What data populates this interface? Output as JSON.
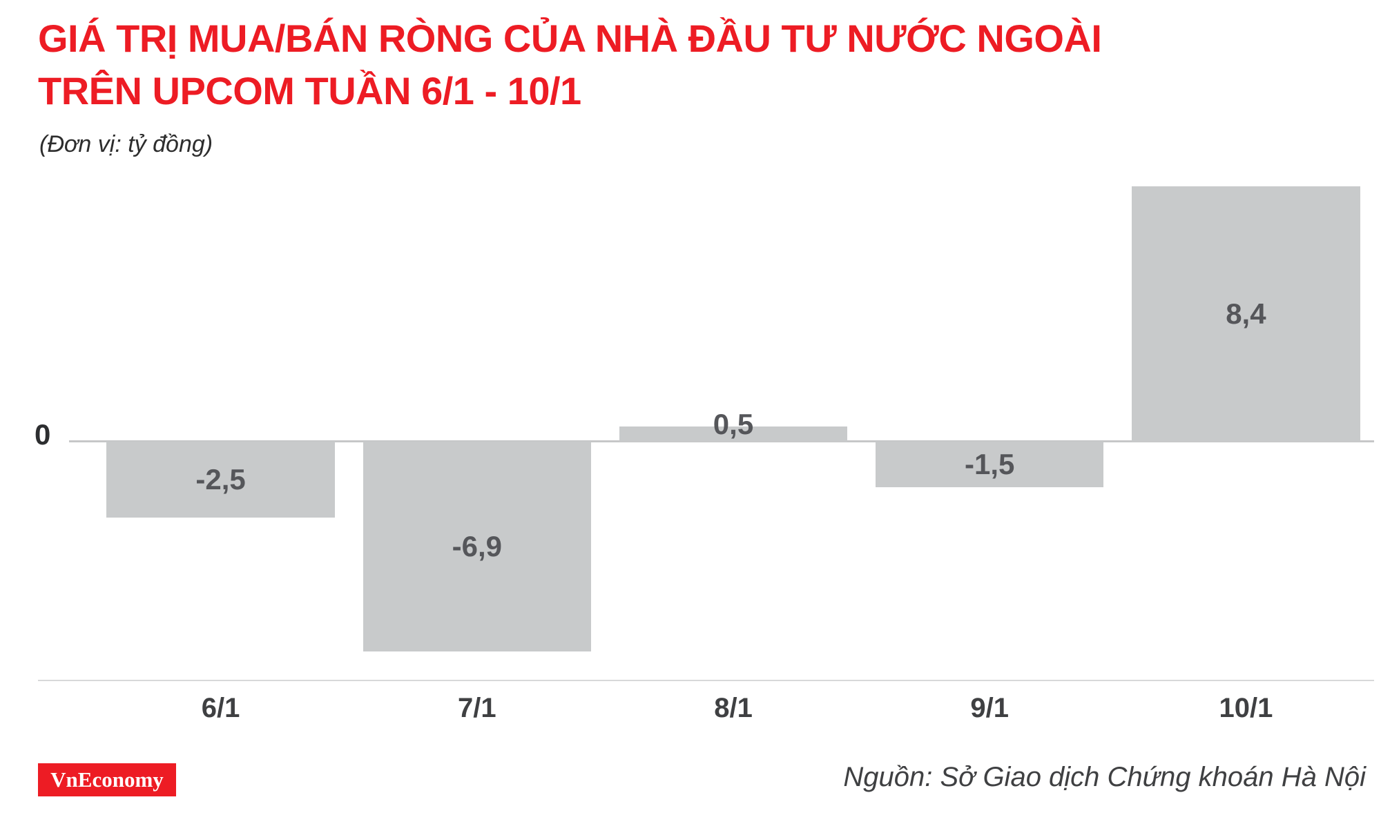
{
  "header": {
    "title_line1": "GIÁ TRỊ MUA/BÁN RÒNG CỦA NHÀ ĐẦU TƯ NƯỚC NGOÀI",
    "title_line2": "TRÊN UPCOM TUẦN 6/1 - 10/1",
    "subtitle": "(Đơn vị: tỷ đồng)"
  },
  "chart_data": {
    "type": "bar",
    "title": "Giá trị mua/bán ròng của nhà đầu tư nước ngoài trên UPCOM tuần 6/1 - 10/1",
    "unit": "tỷ đồng",
    "categories": [
      "6/1",
      "7/1",
      "8/1",
      "9/1",
      "10/1"
    ],
    "values": [
      -2.5,
      -6.9,
      0.5,
      -1.5,
      8.4
    ],
    "value_labels": [
      "-2,5",
      "-6,9",
      "0,5",
      "-1,5",
      "8,4"
    ],
    "zero_label": "0",
    "ylim": [
      -8,
      9
    ],
    "grid": false,
    "legend": "none",
    "bar_color": "#c8cacb",
    "label_color": "#55565a"
  },
  "footer": {
    "logo_text": "VnEconomy",
    "source": "Nguồn: Sở Giao dịch Chứng khoán Hà Nội"
  },
  "colors": {
    "title_red": "#ed1c24",
    "zero_line_gray": "#c6c7c8",
    "axis_gray": "#d7d8d9",
    "text_dark": "#3f4042"
  }
}
